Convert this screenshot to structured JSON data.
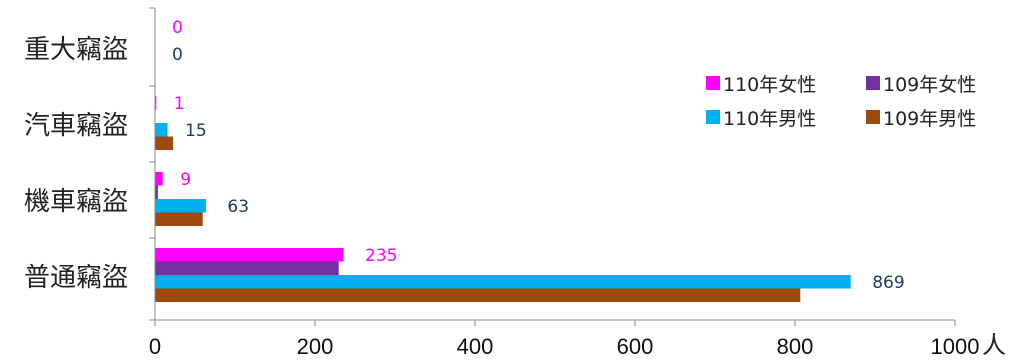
{
  "chart_data": {
    "type": "bar",
    "orientation": "horizontal",
    "categories": [
      "重大竊盜",
      "汽車竊盜",
      "機車竊盜",
      "普通竊盜"
    ],
    "series": [
      {
        "name": "110年女性",
        "color": "#ff00ff",
        "values": [
          0,
          1,
          9,
          235
        ],
        "label_color": "#ff00ff",
        "show_labels": true
      },
      {
        "name": "109年女性",
        "color": "#7030a0",
        "values": [
          0,
          0,
          3,
          229
        ],
        "show_labels": false
      },
      {
        "name": "110年男性",
        "color": "#00b0f0",
        "values": [
          0,
          15,
          63,
          869
        ],
        "label_color": "#1f3864",
        "show_labels": true
      },
      {
        "name": "109年男性",
        "color": "#9c4a0d",
        "values": [
          0,
          22,
          59,
          806
        ],
        "show_labels": false
      }
    ],
    "xlim": [
      0,
      1000
    ],
    "xticks": [
      "0",
      "200",
      "400",
      "600",
      "800",
      "1000"
    ],
    "xunit": "人",
    "legend_position": "right",
    "grid": false
  }
}
